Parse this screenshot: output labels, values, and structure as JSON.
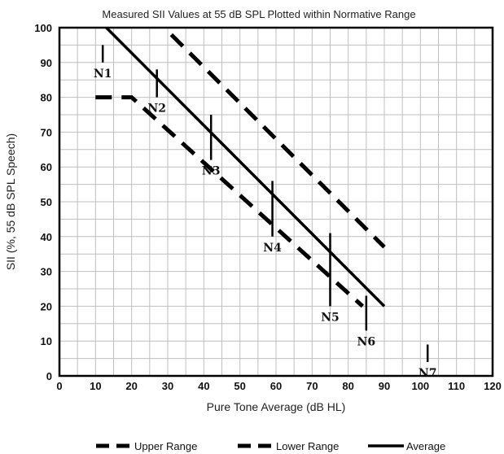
{
  "chart_data": {
    "type": "line",
    "title": "Measured SII Values at 55 dB SPL Plotted within Normative Range",
    "xlabel": "Pure Tone Average (dB HL)",
    "ylabel": "SII (%, 55 dB SPL Speech)",
    "xlim": [
      0,
      120
    ],
    "ylim": [
      0,
      100
    ],
    "xticks": [
      "0",
      "10",
      "20",
      "30",
      "40",
      "50",
      "60",
      "70",
      "80",
      "90",
      "100",
      "110",
      "120"
    ],
    "yticks": [
      "0",
      "10",
      "20",
      "30",
      "40",
      "50",
      "60",
      "70",
      "80",
      "90",
      "100"
    ],
    "grid": true,
    "legend_position": "bottom",
    "series": [
      {
        "name": "Upper Range",
        "style": "dashed",
        "color": "#000000",
        "points": [
          [
            31,
            98
          ],
          [
            90,
            37
          ]
        ]
      },
      {
        "name": "Lower Range",
        "style": "dashed",
        "color": "#000000",
        "points": [
          [
            10,
            80
          ],
          [
            20,
            80
          ],
          [
            84,
            20
          ]
        ]
      },
      {
        "name": "Average",
        "style": "solid",
        "color": "#000000",
        "points": [
          [
            13,
            100
          ],
          [
            90,
            20
          ]
        ]
      }
    ],
    "measurements": [
      {
        "label": "N1",
        "x": 12,
        "y_low": 90,
        "y_high": 95
      },
      {
        "label": "N2",
        "x": 27,
        "y_low": 80,
        "y_high": 88
      },
      {
        "label": "N3",
        "x": 42,
        "y_low": 62,
        "y_high": 75
      },
      {
        "label": "N4",
        "x": 59,
        "y_low": 40,
        "y_high": 56
      },
      {
        "label": "N5",
        "x": 75,
        "y_low": 20,
        "y_high": 41
      },
      {
        "label": "N6",
        "x": 85,
        "y_low": 13,
        "y_high": 23
      },
      {
        "label": "N7",
        "x": 102,
        "y_low": 4,
        "y_high": 9
      }
    ]
  }
}
